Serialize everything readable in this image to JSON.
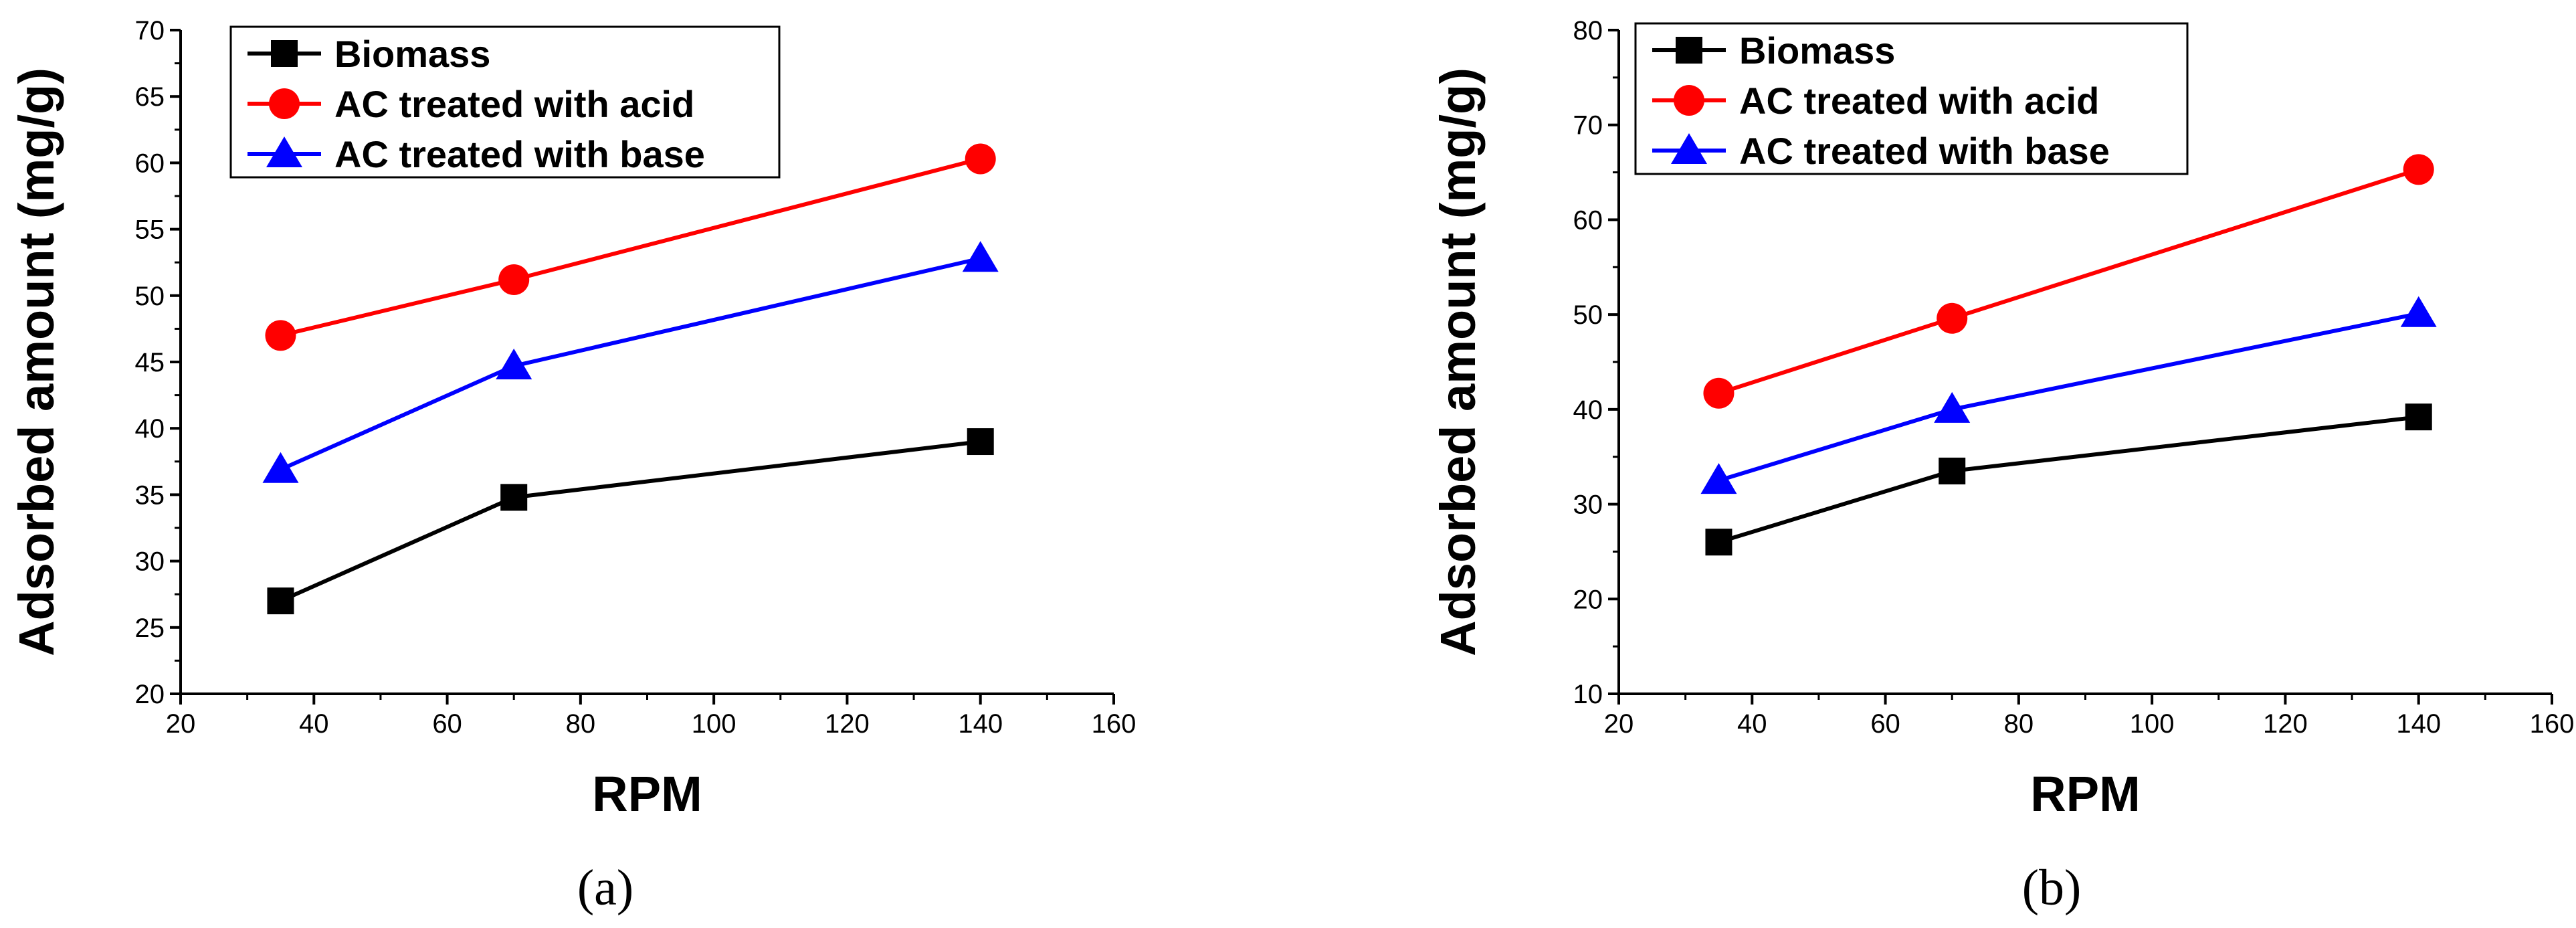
{
  "chart_data": [
    {
      "type": "line",
      "panel_label": "(a)",
      "xlabel": "RPM",
      "ylabel": "Adsorbed amount (mg/g)",
      "xlim": [
        20,
        160
      ],
      "ylim": [
        20,
        70
      ],
      "xticks": [
        20,
        40,
        60,
        80,
        100,
        120,
        140,
        160
      ],
      "yticks": [
        20,
        25,
        30,
        35,
        40,
        45,
        50,
        55,
        60,
        65,
        70
      ],
      "legend_position": "top-left",
      "series": [
        {
          "name": "Biomass",
          "color": "#000000",
          "marker": "square",
          "x": [
            35,
            70,
            140
          ],
          "y": [
            27.0,
            34.8,
            39.0
          ]
        },
        {
          "name": "AC treated with acid",
          "color": "#ff0000",
          "marker": "circle",
          "x": [
            35,
            70,
            140
          ],
          "y": [
            47.0,
            51.2,
            60.3
          ]
        },
        {
          "name": "AC treated with base",
          "color": "#0000ff",
          "marker": "triangle",
          "x": [
            35,
            70,
            140
          ],
          "y": [
            36.9,
            44.7,
            52.8
          ]
        }
      ]
    },
    {
      "type": "line",
      "panel_label": "(b)",
      "xlabel": "RPM",
      "ylabel": "Adsorbed amount (mg/g)",
      "xlim": [
        20,
        160
      ],
      "ylim": [
        10,
        80
      ],
      "xticks": [
        20,
        40,
        60,
        80,
        100,
        120,
        140,
        160
      ],
      "yticks": [
        10,
        20,
        30,
        40,
        50,
        60,
        70,
        80
      ],
      "legend_position": "top-left",
      "series": [
        {
          "name": "Biomass",
          "color": "#000000",
          "marker": "square",
          "x": [
            35,
            70,
            140
          ],
          "y": [
            26.0,
            33.5,
            39.2
          ]
        },
        {
          "name": "AC treated with acid",
          "color": "#ff0000",
          "marker": "circle",
          "x": [
            35,
            70,
            140
          ],
          "y": [
            41.7,
            49.6,
            65.3
          ]
        },
        {
          "name": "AC treated with base",
          "color": "#0000ff",
          "marker": "triangle",
          "x": [
            35,
            70,
            140
          ],
          "y": [
            32.5,
            40.0,
            50.1
          ]
        }
      ]
    }
  ]
}
